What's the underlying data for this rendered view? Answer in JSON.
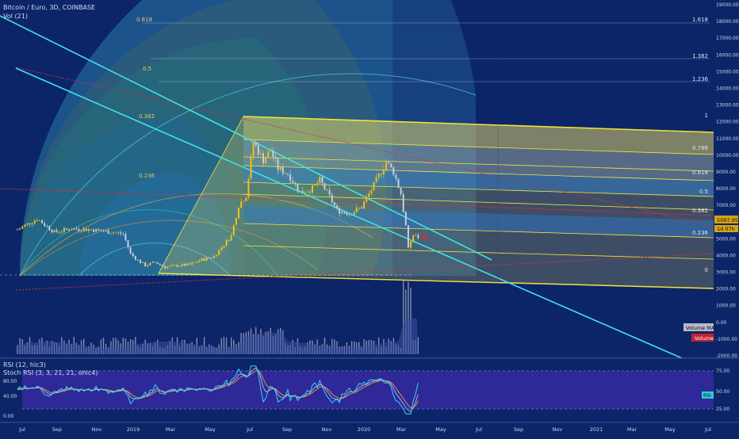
{
  "header": {
    "symbol": "Bitcoin / Euro, 3D, COINBASE",
    "vol": "Vol (21)"
  },
  "price_axis": {
    "ticks": [
      "19000.00",
      "18000.00",
      "17000.00",
      "16000.00",
      "15000.00",
      "14000.00",
      "13000.00",
      "12000.00",
      "11000.00",
      "10000.00",
      "9000.00",
      "8000.00",
      "7000.00",
      "6000.00",
      "5000.00",
      "4000.00",
      "3000.00",
      "2000.00",
      "1000.00",
      "0.00",
      "-1000.00",
      "-2000.00"
    ],
    "current_price": "5097.95",
    "countdown": "1d 07h",
    "volume_ma_label": "Volume MA",
    "volume_label": "Volume"
  },
  "fib_levels_right": [
    "1.618",
    "1.382",
    "1.236",
    "1",
    "0.786",
    "0.618",
    "0.5",
    "0.382",
    "0.236",
    "0"
  ],
  "fib_arc_labels": [
    "0.618",
    "0.5",
    "0.382",
    "0.236"
  ],
  "indicator": {
    "rsi_title": "RSI (12, hlc3)",
    "stoch_title": "Stoch RSI (3, 3, 21, 21, ohlc4)",
    "left_ticks": [
      "80.00",
      "40.00",
      "0.00"
    ],
    "right_ticks": [
      "75.00",
      "50.00",
      "25.00"
    ],
    "rsi_tag": "RSI"
  },
  "time_axis": {
    "labels": [
      "Jul",
      "Sep",
      "Nov",
      "2019",
      "Mar",
      "May",
      "Jul",
      "Sep",
      "Nov",
      "2020",
      "Mar",
      "May",
      "Jul",
      "Sep",
      "Nov",
      "2021",
      "Mar",
      "May",
      "Jul"
    ]
  },
  "colors": {
    "background": "#0c2569",
    "candle_up": "#f2c118",
    "trend_line": "#3fe3e8",
    "channel": "#f3e53a",
    "red_dotted": "#d4303a"
  },
  "chart_data": {
    "type": "candlestick",
    "title": "Bitcoin / Euro, 3D, COINBASE",
    "yaxis_range": [
      -2000,
      19000
    ],
    "close_path": [
      [
        0.0,
        5550
      ],
      [
        0.8,
        6200
      ],
      [
        1.5,
        5400
      ],
      [
        2.2,
        5600
      ],
      [
        3.0,
        5550
      ],
      [
        3.8,
        5400
      ],
      [
        4.3,
        5300
      ],
      [
        4.6,
        4100
      ],
      [
        4.9,
        3700
      ],
      [
        5.2,
        3400
      ],
      [
        5.6,
        3600
      ],
      [
        6.0,
        3300
      ],
      [
        6.5,
        3400
      ],
      [
        7.0,
        3450
      ],
      [
        7.5,
        3750
      ],
      [
        8.0,
        3950
      ],
      [
        8.7,
        5200
      ],
      [
        9.0,
        7000
      ],
      [
        9.3,
        7600
      ],
      [
        9.6,
        10800
      ],
      [
        10.0,
        9700
      ],
      [
        10.3,
        10300
      ],
      [
        10.6,
        9200
      ],
      [
        11.0,
        8900
      ],
      [
        11.5,
        7800
      ],
      [
        12.0,
        8000
      ],
      [
        12.3,
        8500
      ],
      [
        12.7,
        7500
      ],
      [
        13.0,
        6700
      ],
      [
        13.5,
        6500
      ],
      [
        14.0,
        6900
      ],
      [
        14.5,
        8200
      ],
      [
        15.0,
        9600
      ],
      [
        15.3,
        9000
      ],
      [
        15.6,
        7700
      ],
      [
        15.8,
        5700
      ],
      [
        15.9,
        4400
      ],
      [
        16.1,
        5200
      ],
      [
        16.3,
        5098
      ]
    ]
  }
}
